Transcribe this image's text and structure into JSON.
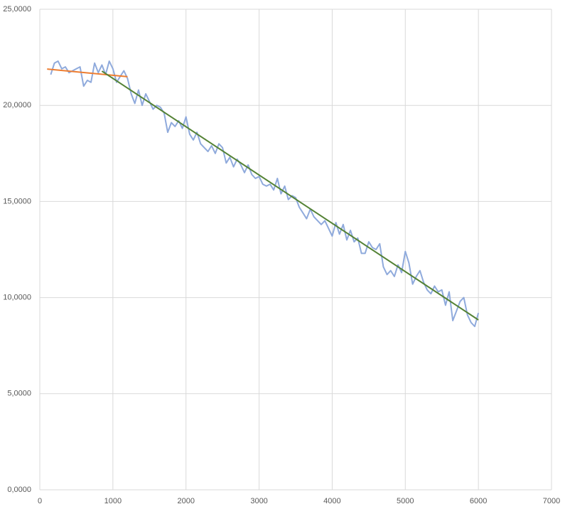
{
  "chart_data": {
    "type": "line",
    "xlim": [
      0,
      7000
    ],
    "ylim": [
      0,
      25
    ],
    "xticks": [
      0,
      1000,
      2000,
      3000,
      4000,
      5000,
      6000,
      7000
    ],
    "yticks": [
      {
        "value": 0,
        "label": "0,0000"
      },
      {
        "value": 5,
        "label": "5,0000"
      },
      {
        "value": 10,
        "label": "10,0000"
      },
      {
        "value": 15,
        "label": "15,0000"
      },
      {
        "value": 20,
        "label": "20,0000"
      },
      {
        "value": 25,
        "label": "25,0000"
      }
    ],
    "grid": true,
    "series": [
      {
        "color": "#8faadc",
        "width": 2,
        "x": [
          150,
          200,
          250,
          300,
          350,
          400,
          450,
          500,
          550,
          600,
          650,
          700,
          750,
          800,
          850,
          900,
          950,
          1000,
          1050,
          1100,
          1150,
          1200,
          1250,
          1300,
          1350,
          1400,
          1450,
          1500,
          1550,
          1600,
          1650,
          1700,
          1750,
          1800,
          1850,
          1900,
          1950,
          2000,
          2050,
          2100,
          2150,
          2200,
          2250,
          2300,
          2350,
          2400,
          2450,
          2500,
          2550,
          2600,
          2650,
          2700,
          2750,
          2800,
          2850,
          2900,
          2950,
          3000,
          3050,
          3100,
          3150,
          3200,
          3250,
          3300,
          3350,
          3400,
          3450,
          3500,
          3550,
          3600,
          3650,
          3700,
          3750,
          3800,
          3850,
          3900,
          3950,
          4000,
          4050,
          4100,
          4150,
          4200,
          4250,
          4300,
          4350,
          4400,
          4450,
          4500,
          4550,
          4600,
          4650,
          4700,
          4750,
          4800,
          4850,
          4900,
          4950,
          5000,
          5050,
          5100,
          5150,
          5200,
          5250,
          5300,
          5350,
          5400,
          5450,
          5500,
          5550,
          5600,
          5650,
          5700,
          5750,
          5800,
          5850,
          5900,
          5950,
          6000
        ],
        "values": [
          21.6,
          22.2,
          22.3,
          21.9,
          22.0,
          21.7,
          21.8,
          21.9,
          22.0,
          21.0,
          21.3,
          21.2,
          22.2,
          21.7,
          22.1,
          21.6,
          22.3,
          21.9,
          21.2,
          21.5,
          21.8,
          21.4,
          20.6,
          20.1,
          20.8,
          20.0,
          20.6,
          20.2,
          19.8,
          20.0,
          19.9,
          19.6,
          18.6,
          19.1,
          18.9,
          19.2,
          18.8,
          19.4,
          18.5,
          18.2,
          18.6,
          18.0,
          17.8,
          17.6,
          17.9,
          17.5,
          18.0,
          17.8,
          17.0,
          17.3,
          16.8,
          17.2,
          16.9,
          16.5,
          16.9,
          16.4,
          16.2,
          16.3,
          15.9,
          15.8,
          15.9,
          15.6,
          16.2,
          15.4,
          15.8,
          15.1,
          15.3,
          15.2,
          14.7,
          14.4,
          14.1,
          14.6,
          14.2,
          14.0,
          13.8,
          14.0,
          13.6,
          13.2,
          13.9,
          13.3,
          13.8,
          13.0,
          13.5,
          12.9,
          13.1,
          12.3,
          12.3,
          12.9,
          12.6,
          12.5,
          12.8,
          11.6,
          11.2,
          11.4,
          11.1,
          11.7,
          11.3,
          12.4,
          11.8,
          10.7,
          11.1,
          11.4,
          10.8,
          10.4,
          10.2,
          10.6,
          10.3,
          10.4,
          9.6,
          10.3,
          8.8,
          9.3,
          9.8,
          10.0,
          9.1,
          8.7,
          8.5,
          9.2
        ]
      },
      {
        "color": "#ed7d31",
        "width": 2,
        "x": [
          100,
          1200
        ],
        "values": [
          21.89,
          21.49
        ]
      },
      {
        "color": "#548235",
        "width": 2,
        "x": [
          850,
          6000
        ],
        "values": [
          21.78,
          8.84
        ]
      }
    ]
  }
}
